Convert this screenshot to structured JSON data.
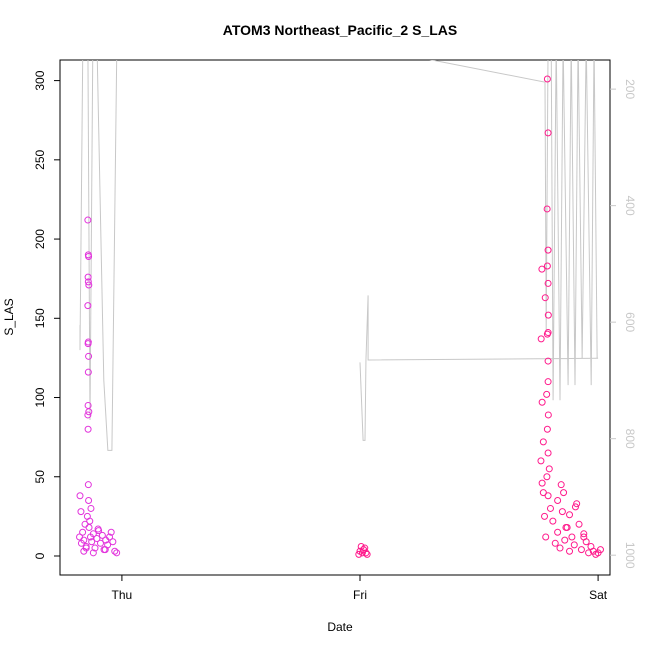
{
  "chart_data": {
    "type": "scatter",
    "title": "ATOM3 Northeast_Pacific_2 S_LAS",
    "x_label": "Date",
    "y_label": "S_LAS",
    "xlim": [
      -0.26,
      2.05
    ],
    "xticks": [
      {
        "value": 0,
        "label": "Thu"
      },
      {
        "value": 1,
        "label": "Fri"
      },
      {
        "value": 2,
        "label": "Sat"
      }
    ],
    "ylim": [
      -12,
      313
    ],
    "yticks": [
      0,
      50,
      100,
      150,
      200,
      250,
      300
    ],
    "y2lim": [
      1034,
      150
    ],
    "y2ticks": [
      200,
      400,
      600,
      800,
      1000
    ],
    "y2_color": "#c8c8c8",
    "series": [
      {
        "color": "#e233dc",
        "x": [
          -0.143,
          -0.141,
          -0.14,
          -0.142,
          -0.141,
          -0.139,
          -0.143,
          -0.141,
          -0.142,
          -0.14,
          -0.141,
          -0.142,
          -0.139,
          -0.143,
          -0.142,
          -0.141,
          -0.176,
          -0.172,
          -0.178,
          -0.17,
          -0.165,
          -0.16,
          -0.155,
          -0.15,
          -0.145,
          -0.138,
          -0.132,
          -0.127,
          -0.12,
          -0.113,
          -0.105,
          -0.098,
          -0.09,
          -0.082,
          -0.075,
          -0.068,
          -0.06,
          -0.052,
          -0.045,
          -0.038,
          -0.03,
          -0.022,
          -0.16,
          -0.15,
          -0.135,
          -0.12,
          -0.1,
          -0.07,
          -0.14,
          -0.13
        ],
        "values": [
          212,
          190,
          189,
          176,
          173,
          171,
          158,
          135,
          134,
          126,
          116,
          95,
          91,
          89,
          80,
          45,
          38,
          28,
          12,
          8,
          15,
          10,
          20,
          6,
          25,
          18,
          12,
          9,
          14,
          5,
          11,
          16,
          8,
          13,
          4,
          10,
          7,
          12,
          15,
          9,
          3,
          2,
          3,
          5,
          22,
          2,
          17,
          4,
          35,
          30
        ]
      },
      {
        "color": "#ff1a8c",
        "x": [
          0.995,
          1.0,
          1.005,
          1.01,
          1.015,
          1.02,
          1.025,
          1.03,
          1.787,
          1.79,
          1.786,
          1.79,
          1.787,
          1.764,
          1.79,
          1.778,
          1.791,
          1.79,
          1.761,
          1.787,
          1.79,
          1.79,
          1.765,
          1.784,
          1.791,
          1.77,
          1.787,
          1.79,
          1.76,
          1.765,
          1.77,
          1.775,
          1.78,
          1.785,
          1.79,
          1.8,
          1.81,
          1.82,
          1.83,
          1.84,
          1.85,
          1.86,
          1.87,
          1.88,
          1.89,
          1.9,
          1.91,
          1.92,
          1.93,
          1.94,
          1.95,
          1.96,
          1.97,
          1.98,
          1.99,
          2.0,
          2.01,
          1.83,
          1.855,
          1.88,
          1.905,
          1.865,
          1.94,
          1.845,
          1.795
        ],
        "values": [
          1,
          3,
          6,
          2,
          4,
          5,
          2,
          1,
          301,
          267,
          219,
          193,
          183,
          181,
          172,
          163,
          152,
          141,
          137,
          140,
          123,
          110,
          97,
          102,
          89,
          72,
          80,
          65,
          60,
          46,
          40,
          25,
          12,
          50,
          38,
          30,
          22,
          8,
          15,
          5,
          28,
          10,
          18,
          3,
          12,
          7,
          33,
          20,
          4,
          14,
          9,
          2,
          6,
          3,
          1,
          2,
          4,
          35,
          40,
          26,
          31,
          18,
          12,
          45,
          55
        ]
      },
      {
        "color": "#c8c8c8",
        "axis": "y2",
        "type": "line",
        "x": [
          -0.176,
          -0.176,
          -0.164,
          -0.143,
          -0.134,
          -0.122,
          -0.105,
          -0.076,
          -0.059,
          -0.042,
          -0.021,
          0.034,
          null,
          1.0,
          1.013,
          1.021,
          1.025,
          1.034,
          1.034,
          2.0,
          null,
          1.252,
          1.777,
          1.782,
          1.79,
          1.803,
          1.811,
          1.824,
          1.84,
          1.853,
          1.874,
          1.887,
          1.903,
          1.916,
          1.933,
          1.95,
          1.971,
          1.983,
          1.996
        ],
        "values": [
          605,
          648,
          116,
          116,
          768,
          116,
          116,
          700,
          820,
          820,
          116,
          116,
          null,
          669,
          803,
          803,
          665,
          554,
          665,
          662,
          null,
          146,
          188,
          614,
          116,
          116,
          734,
          116,
          734,
          116,
          708,
          116,
          708,
          116,
          662,
          116,
          708,
          116,
          662
        ]
      }
    ]
  }
}
